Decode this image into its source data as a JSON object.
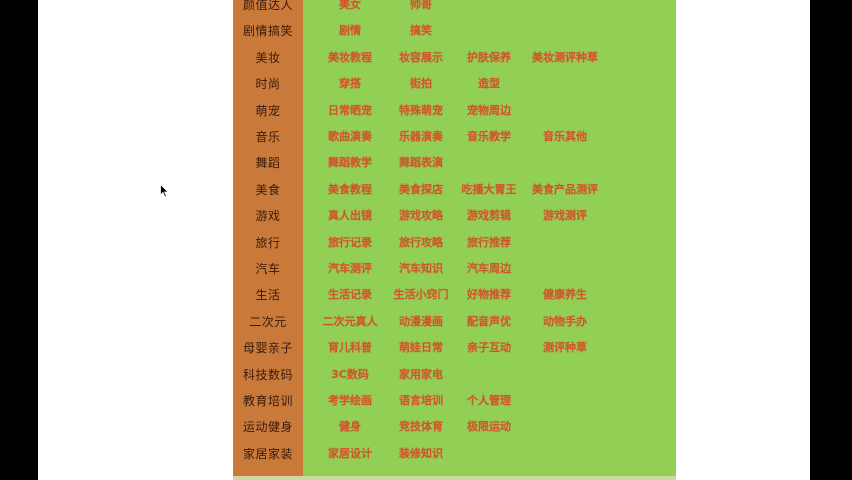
{
  "rows": [
    {
      "category": "颜值达人",
      "items": [
        "美女",
        "帅哥"
      ]
    },
    {
      "category": "剧情搞笑",
      "items": [
        "剧情",
        "搞笑"
      ]
    },
    {
      "category": "美妆",
      "items": [
        "美妆教程",
        "妆容展示",
        "护肤保养",
        "美妆测评种草"
      ]
    },
    {
      "category": "时尚",
      "items": [
        "穿搭",
        "街拍",
        "造型"
      ]
    },
    {
      "category": "萌宠",
      "items": [
        "日常晒宠",
        "特殊萌宠",
        "宠物周边"
      ]
    },
    {
      "category": "音乐",
      "items": [
        "歌曲演奏",
        "乐器演奏",
        "音乐教学",
        "音乐其他"
      ]
    },
    {
      "category": "舞蹈",
      "items": [
        "舞蹈教学",
        "舞蹈表演"
      ]
    },
    {
      "category": "美食",
      "items": [
        "美食教程",
        "美食探店",
        "吃播大胃王",
        "美食产品测评"
      ]
    },
    {
      "category": "游戏",
      "items": [
        "真人出镜",
        "游戏攻略",
        "游戏剪辑",
        "游戏测评"
      ]
    },
    {
      "category": "旅行",
      "items": [
        "旅行记录",
        "旅行攻略",
        "旅行推荐"
      ]
    },
    {
      "category": "汽车",
      "items": [
        "汽车测评",
        "汽车知识",
        "汽车周边"
      ]
    },
    {
      "category": "生活",
      "items": [
        "生活记录",
        "生活小窍门",
        "好物推荐",
        "健康养生"
      ]
    },
    {
      "category": "二次元",
      "items": [
        "二次元真人",
        "动漫漫画",
        "配音声优",
        "动物手办"
      ]
    },
    {
      "category": "母婴亲子",
      "items": [
        "育儿科普",
        "萌娃日常",
        "亲子互动",
        "测评种草"
      ]
    },
    {
      "category": "科技数码",
      "items": [
        "3C数码",
        "家用家电"
      ]
    },
    {
      "category": "教育培训",
      "items": [
        "考学绘画",
        "语言培训",
        "个人管理"
      ]
    },
    {
      "category": "运动健身",
      "items": [
        "健身",
        "竞技体育",
        "极限运动"
      ]
    },
    {
      "category": "家居家装",
      "items": [
        "家居设计",
        "装修知识"
      ]
    }
  ],
  "colors": {
    "background": "#000000",
    "panel": "#ffffff",
    "table_green": "#92cf55",
    "category_orange": "#c97a3a",
    "item_text": "#c85a2a"
  },
  "icons": {
    "cursor": "mouse-pointer-icon"
  }
}
